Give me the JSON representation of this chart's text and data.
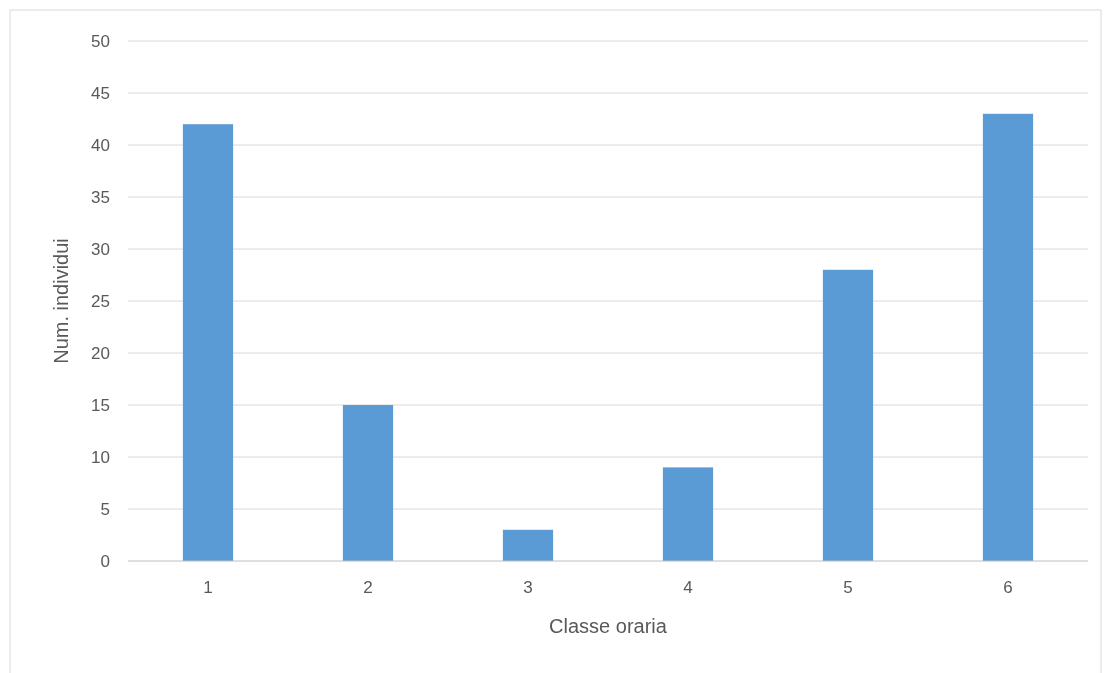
{
  "chart_data": {
    "type": "bar",
    "xlabel": "Classe oraria",
    "ylabel": "Num. individui",
    "categories": [
      "1",
      "2",
      "3",
      "4",
      "5",
      "6"
    ],
    "values": [
      42,
      15,
      3,
      9,
      28,
      43
    ],
    "color": "#5b9bd5",
    "ylim": [
      0,
      50
    ],
    "yticks": [
      0,
      5,
      10,
      15,
      20,
      25,
      30,
      35,
      40,
      45,
      50
    ],
    "grid": "y"
  }
}
